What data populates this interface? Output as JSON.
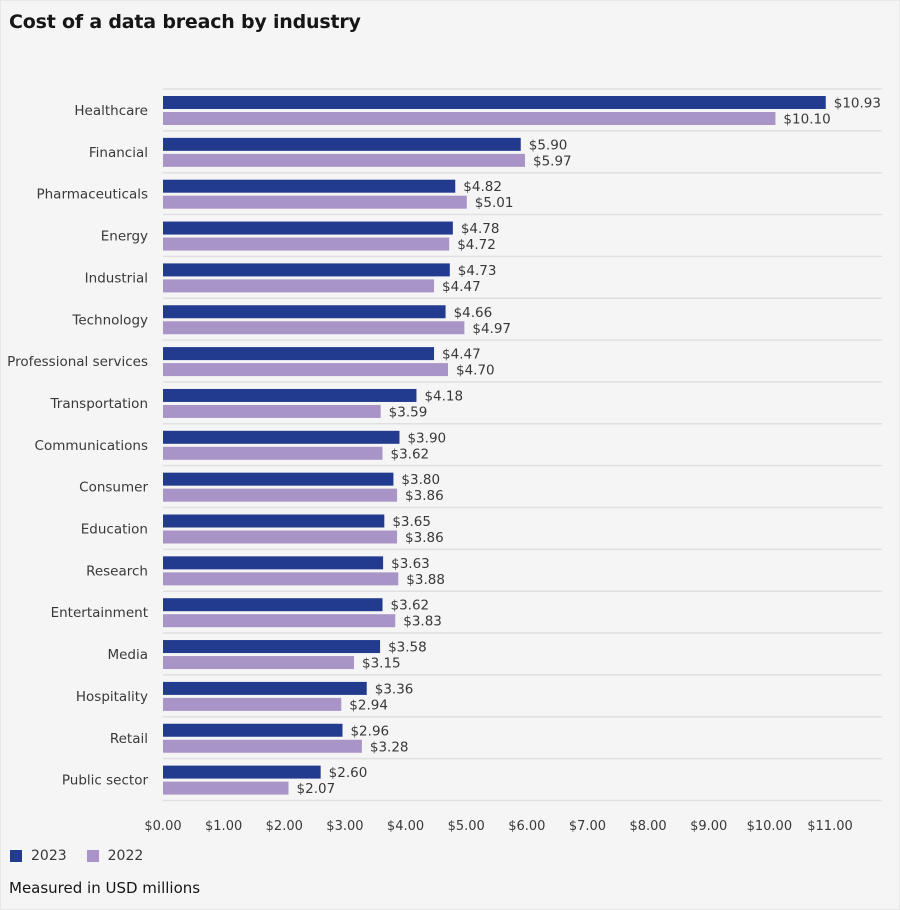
{
  "chart_data": {
    "type": "bar",
    "orientation": "horizontal",
    "title": "Cost of a data breach by industry",
    "xlabel": "",
    "ylabel": "",
    "xlim": [
      0,
      11
    ],
    "x_ticks": [
      "$0.00",
      "$1.00",
      "$2.00",
      "$3.00",
      "$4.00",
      "$5.00",
      "$6.00",
      "$7.00",
      "$8.00",
      "$9.00",
      "$10.00",
      "$11.00"
    ],
    "x_tick_values": [
      0,
      1,
      2,
      3,
      4,
      5,
      6,
      7,
      8,
      9,
      10,
      11
    ],
    "grid": "horizontal separators between categories",
    "legend_position": "bottom-left",
    "categories": [
      "Healthcare",
      "Financial",
      "Pharmaceuticals",
      "Energy",
      "Industrial",
      "Technology",
      "Professional services",
      "Transportation",
      "Communications",
      "Consumer",
      "Education",
      "Research",
      "Entertainment",
      "Media",
      "Hospitality",
      "Retail",
      "Public sector"
    ],
    "series": [
      {
        "name": "2023",
        "color": "#233b8f",
        "values": [
          10.93,
          5.9,
          4.82,
          4.78,
          4.73,
          4.66,
          4.47,
          4.18,
          3.9,
          3.8,
          3.65,
          3.63,
          3.62,
          3.58,
          3.36,
          2.96,
          2.6
        ],
        "labels": [
          "$10.93",
          "$5.90",
          "$4.82",
          "$4.78",
          "$4.73",
          "$4.66",
          "$4.47",
          "$4.18",
          "$3.90",
          "$3.80",
          "$3.65",
          "$3.63",
          "$3.62",
          "$3.58",
          "$3.36",
          "$2.96",
          "$2.60"
        ]
      },
      {
        "name": "2022",
        "color": "#a994c7",
        "values": [
          10.1,
          5.97,
          5.01,
          4.72,
          4.47,
          4.97,
          4.7,
          3.59,
          3.62,
          3.86,
          3.86,
          3.88,
          3.83,
          3.15,
          2.94,
          3.28,
          2.07
        ],
        "labels": [
          "$10.10",
          "$5.97",
          "$5.01",
          "$4.72",
          "$4.47",
          "$4.97",
          "$4.70",
          "$3.59",
          "$3.62",
          "$3.86",
          "$3.86",
          "$3.88",
          "$3.83",
          "$3.15",
          "$2.94",
          "$3.28",
          "$2.07"
        ]
      }
    ],
    "footnote": "Measured in USD millions"
  },
  "legend": {
    "items": [
      {
        "label": "2023",
        "color": "#233b8f"
      },
      {
        "label": "2022",
        "color": "#a994c7"
      }
    ]
  },
  "colors": {
    "background": "#f5f5f5",
    "gridline": "#e0e0e0",
    "text": "#393939"
  }
}
